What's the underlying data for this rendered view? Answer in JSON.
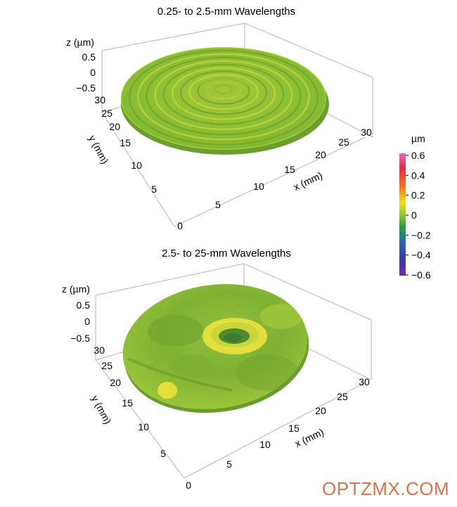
{
  "chart_data": [
    {
      "type": "surface3d",
      "title": "0.25- to 2.5-mm Wavelengths",
      "xlabel": "x (mm)",
      "ylabel": "y (mm)",
      "zlabel": "z (µm)",
      "x_ticks": [
        "5",
        "10",
        "15",
        "20",
        "25",
        "30"
      ],
      "y_ticks": [
        "0",
        "5",
        "10",
        "15",
        "20",
        "25",
        "30"
      ],
      "z_ticks": [
        "0.5",
        "0",
        "−0.5"
      ],
      "xlim": [
        0,
        30
      ],
      "ylim": [
        0,
        30
      ],
      "zlim": [
        -0.5,
        0.5
      ],
      "surface": "circular part, diameter ~30 mm, fine concentric rings",
      "dominant_value_um": -0.05,
      "ring_count": 12
    },
    {
      "type": "surface3d",
      "title": "2.5- to 25-mm Wavelengths",
      "xlabel": "x (mm)",
      "ylabel": "y (mm)",
      "zlabel": "z (µm)",
      "x_ticks": [
        "5",
        "10",
        "15",
        "20",
        "25",
        "30"
      ],
      "y_ticks": [
        "0",
        "5",
        "10",
        "15",
        "20",
        "25",
        "30"
      ],
      "z_ticks": [
        "0.5",
        "0",
        "−0.5"
      ],
      "xlim": [
        0,
        30
      ],
      "ylim": [
        0,
        30
      ],
      "zlim": [
        -0.5,
        0.5
      ],
      "surface": "smooth low-frequency form error, raised ring around a central dip",
      "dominant_value_um": -0.05
    }
  ],
  "colorbar": {
    "unit": "µm",
    "ticks": [
      "0.6",
      "0.4",
      "0.2",
      "0",
      "−0.2",
      "−0.4",
      "−0.6"
    ],
    "range": [
      -0.6,
      0.6
    ],
    "colors": [
      "#c84aa8",
      "#d93030",
      "#ee7a20",
      "#f3e020",
      "#a6d62c",
      "#3aa640",
      "#2c6aa8",
      "#4a3aa0",
      "#7a2aa0"
    ]
  },
  "watermark": "OPTZMX.COM"
}
